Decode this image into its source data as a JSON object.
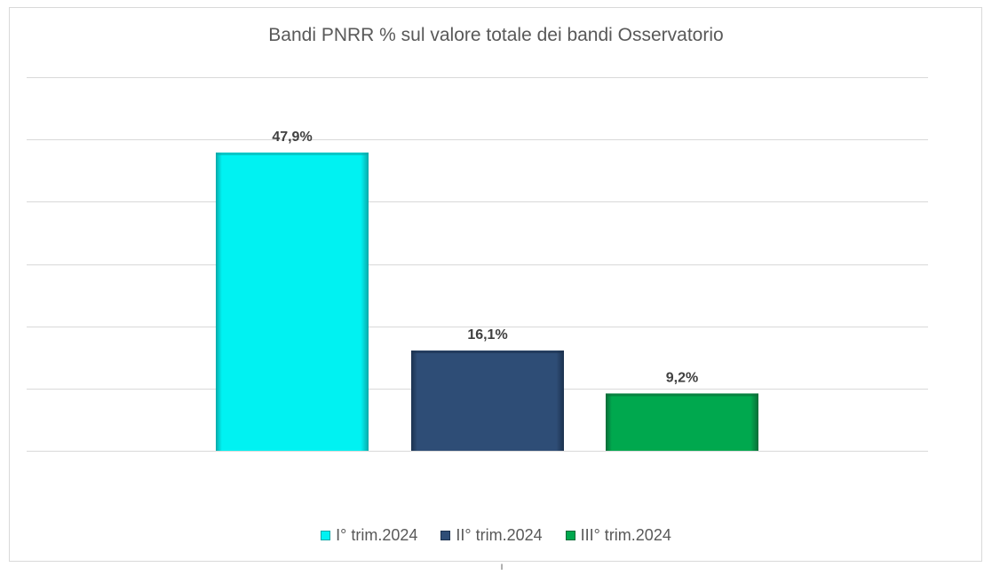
{
  "chart_data": {
    "type": "bar",
    "title": "Bandi PNRR % sul valore totale dei bandi Osservatorio",
    "xlabel": "",
    "ylabel": "",
    "ylim": [
      0,
      60
    ],
    "grid": true,
    "legend_position": "bottom",
    "categories": [
      "I° trim.2024",
      "II° trim.2024",
      "III° trim.2024"
    ],
    "values": [
      47.9,
      16.1,
      9.2
    ],
    "data_labels": [
      "47,9%",
      "16,1%",
      "9,2%"
    ],
    "colors": [
      "#00f2f2",
      "#2e4d76",
      "#00a84e"
    ],
    "edge_colors": [
      "#0aa8a8",
      "#1c324f",
      "#0b6b37"
    ]
  },
  "footer_mark": "ˡ"
}
